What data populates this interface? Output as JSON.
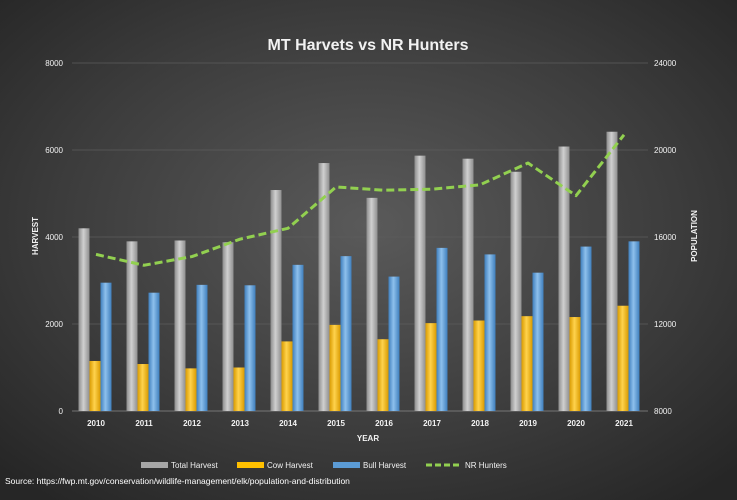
{
  "chart_data": {
    "type": "bar",
    "title": "MT Harvets vs NR Hunters",
    "xlabel": "YEAR",
    "ylabel": "HARVEST",
    "y2label": "POPULATION",
    "categories": [
      "2010",
      "2011",
      "2012",
      "2013",
      "2014",
      "2015",
      "2016",
      "2017",
      "2018",
      "2019",
      "2020",
      "2021"
    ],
    "ylim": [
      0,
      8000
    ],
    "yticks": [
      "0",
      "2000",
      "4000",
      "6000",
      "8000"
    ],
    "y2lim": [
      8000,
      24000
    ],
    "y2ticks": [
      "8000",
      "12000",
      "16000",
      "20000",
      "24000"
    ],
    "series": [
      {
        "name": "Total Harvest",
        "kind": "bar",
        "axis": "left",
        "color": "#a6a6a6",
        "values": [
          4200,
          3900,
          3920,
          3880,
          5080,
          5700,
          4900,
          5870,
          5800,
          5500,
          6080,
          6420
        ]
      },
      {
        "name": "Cow Harvest",
        "kind": "bar",
        "axis": "left",
        "color": "#ffc000",
        "values": [
          1150,
          1080,
          980,
          1000,
          1600,
          1980,
          1650,
          2020,
          2080,
          2180,
          2160,
          2420
        ]
      },
      {
        "name": "Bull Harvest",
        "kind": "bar",
        "axis": "left",
        "color": "#5b9bd5",
        "values": [
          2950,
          2720,
          2900,
          2890,
          3360,
          3560,
          3090,
          3750,
          3600,
          3180,
          3780,
          3900
        ]
      },
      {
        "name": "NR Hunters",
        "kind": "line",
        "axis": "right",
        "color": "#92d050",
        "values": [
          15200,
          14700,
          15100,
          15900,
          16400,
          18300,
          18150,
          18200,
          18400,
          19400,
          17900,
          20700
        ]
      }
    ],
    "grid": true,
    "legend": "bottom",
    "background": "#3a3a3a"
  },
  "source_text": "Source: https://fwp.mt.gov/conservation/wildlife-management/elk/population-and-distribution"
}
